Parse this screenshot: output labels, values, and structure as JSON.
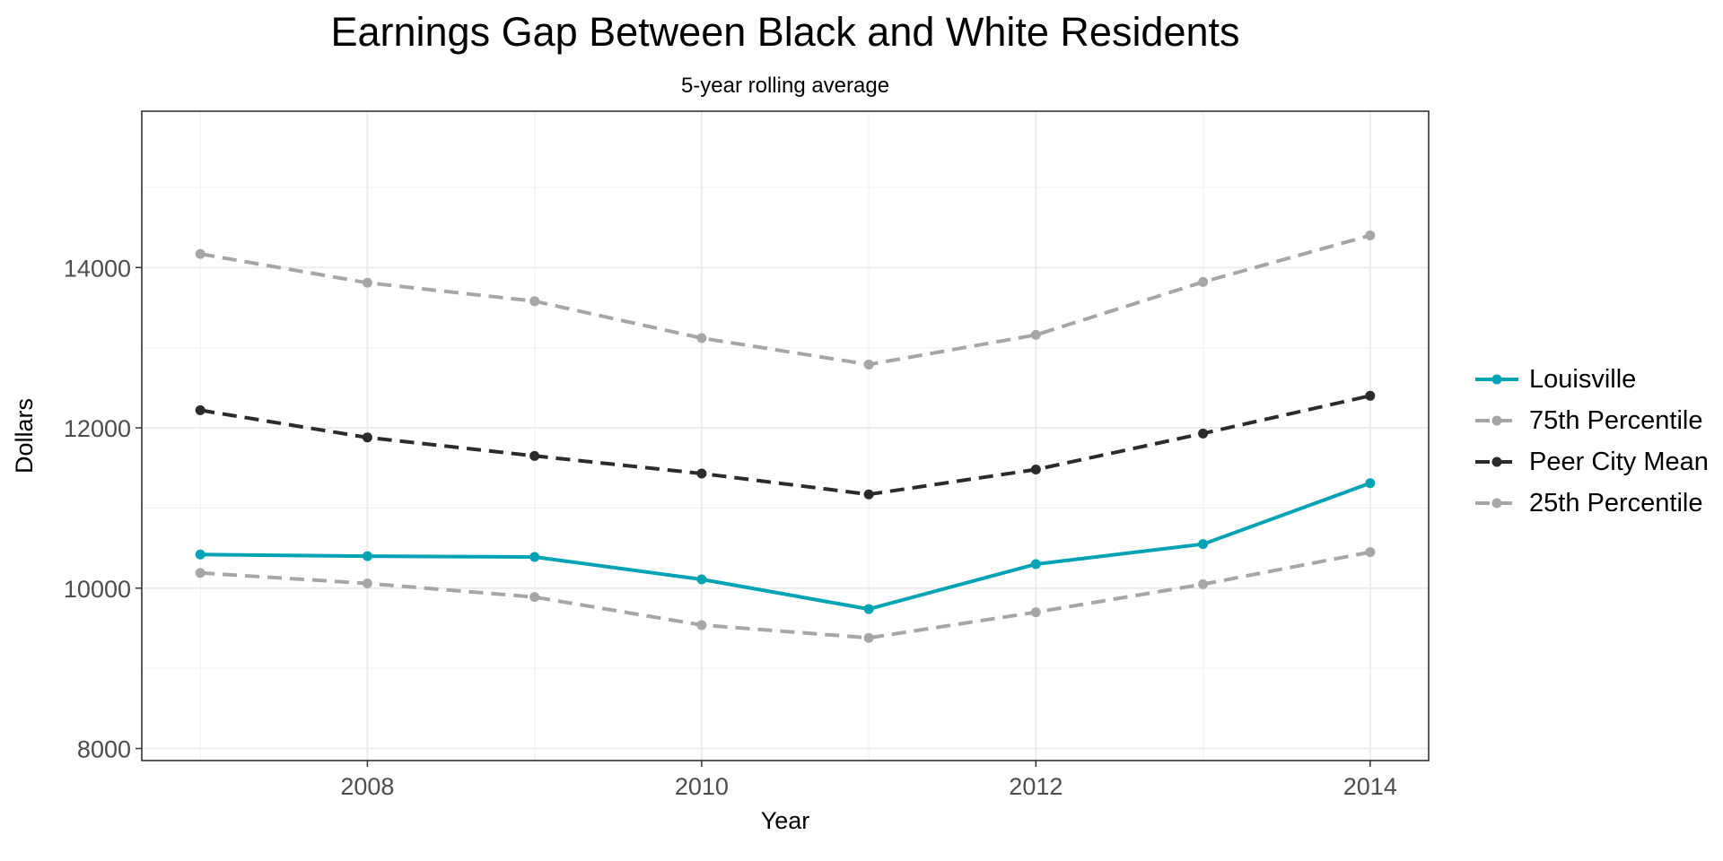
{
  "chart_data": {
    "type": "line",
    "title": "Earnings Gap Between Black and White Residents",
    "subtitle": "5-year rolling average",
    "xlabel": "Year",
    "ylabel": "Dollars",
    "x": [
      2007,
      2008,
      2009,
      2010,
      2011,
      2012,
      2013,
      2014
    ],
    "xlim": [
      2006.65,
      2014.35
    ],
    "ylim": [
      7850,
      15950
    ],
    "x_ticks": [
      2008,
      2010,
      2012,
      2014
    ],
    "y_ticks": [
      8000,
      10000,
      12000,
      14000
    ],
    "grid": true,
    "legend_position": "right",
    "series": [
      {
        "name": "Louisville",
        "color": "#00a3b4",
        "line": "solid",
        "values": [
          10420,
          10400,
          10390,
          10110,
          9740,
          10300,
          10550,
          11310
        ]
      },
      {
        "name": "75th Percentile",
        "color": "#a6a6a6",
        "line": "dashed",
        "values": [
          14170,
          13810,
          13580,
          13120,
          12790,
          13160,
          13820,
          14400
        ]
      },
      {
        "name": "Peer City Mean",
        "color": "#2b2b2b",
        "line": "dashed",
        "values": [
          12220,
          11880,
          11650,
          11430,
          11170,
          11480,
          11930,
          12400
        ]
      },
      {
        "name": "25th Percentile",
        "color": "#a6a6a6",
        "line": "dashed",
        "values": [
          10190,
          10060,
          9890,
          9540,
          9380,
          9700,
          10050,
          10450
        ]
      }
    ]
  }
}
